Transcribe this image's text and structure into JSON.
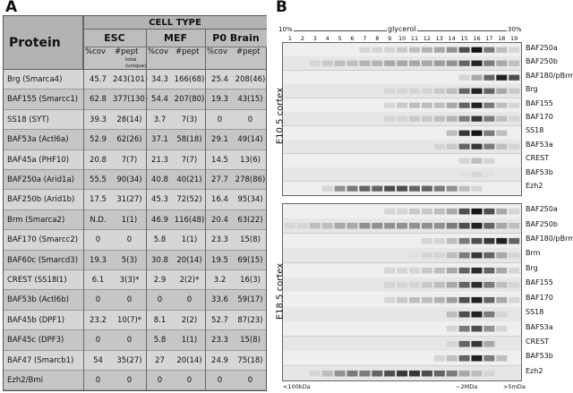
{
  "panel_a": {
    "letter": "A",
    "protein_header": "Protein",
    "cell_type_header": "CELL TYPE",
    "groups": [
      "ESC",
      "MEF",
      "P0  Brain"
    ],
    "subheaders": {
      "cov": "%cov",
      "pept": "#pept",
      "pept_note": "total (unique)"
    },
    "rows": [
      {
        "protein": "Brg (Smarca4)",
        "esc_cov": "45.7",
        "esc_pept": "243(101)",
        "mef_cov": "34.3",
        "mef_pept": "166(68)",
        "brain_cov": "25.4",
        "brain_pept": "208(46)"
      },
      {
        "protein": "BAF155 (Smarcc1)",
        "esc_cov": "62.8",
        "esc_pept": "377(130)",
        "mef_cov": "54.4",
        "mef_pept": "207(80)",
        "brain_cov": "19.3",
        "brain_pept": "43(15)"
      },
      {
        "protein": "SS18 (SYT)",
        "esc_cov": "39.3",
        "esc_pept": "28(14)",
        "mef_cov": "3.7",
        "mef_pept": "7(3)",
        "brain_cov": "0",
        "brain_pept": "0"
      },
      {
        "protein": "BAF53a (Actl6a)",
        "esc_cov": "52.9",
        "esc_pept": "62(26)",
        "mef_cov": "37.1",
        "mef_pept": "58(18)",
        "brain_cov": "29.1",
        "brain_pept": "49(14)"
      },
      {
        "protein": "BAF45a (PHF10)",
        "esc_cov": "20.8",
        "esc_pept": "7(7)",
        "mef_cov": "21.3",
        "mef_pept": "7(7)",
        "brain_cov": "14.5",
        "brain_pept": "13(6)"
      },
      {
        "protein": "BAF250a (Arid1a)",
        "esc_cov": "55.5",
        "esc_pept": "90(34)",
        "mef_cov": "40.8",
        "mef_pept": "40(21)",
        "brain_cov": "27.7",
        "brain_pept": "278(86)"
      },
      {
        "protein": "BAF250b (Arid1b)",
        "esc_cov": "17.5",
        "esc_pept": "31(27)",
        "mef_cov": "45.3",
        "mef_pept": "72(52)",
        "brain_cov": "16.4",
        "brain_pept": "95(34)"
      },
      {
        "protein": "Brm (Smarca2)",
        "esc_cov": "N.D.",
        "esc_pept": "1(1)",
        "mef_cov": "46.9",
        "mef_pept": "116(48)",
        "brain_cov": "20.4",
        "brain_pept": "63(22)"
      },
      {
        "protein": "BAF170 (Smarcc2)",
        "esc_cov": "0",
        "esc_pept": "0",
        "mef_cov": "5.8",
        "mef_pept": "1(1)",
        "brain_cov": "23.3",
        "brain_pept": "15(8)"
      },
      {
        "protein": "BAF60c (Smarcd3)",
        "esc_cov": "19.3",
        "esc_pept": "5(3)",
        "mef_cov": "30.8",
        "mef_pept": "20(14)",
        "brain_cov": "19.5",
        "brain_pept": "69(15)"
      },
      {
        "protein": "CREST (SS18l1)",
        "esc_cov": "6.1",
        "esc_pept": "3(3)*",
        "mef_cov": "2.9",
        "mef_pept": "2(2)*",
        "brain_cov": "3.2",
        "brain_pept": "16(3)"
      },
      {
        "protein": "BAF53b (Actl6b)",
        "esc_cov": "0",
        "esc_pept": "0",
        "mef_cov": "0",
        "mef_pept": "0",
        "brain_cov": "33.6",
        "brain_pept": "59(17)"
      },
      {
        "protein": "BAF45b (DPF1)",
        "esc_cov": "23.2",
        "esc_pept": "10(7)*",
        "mef_cov": "8.1",
        "mef_pept": "2(2)",
        "brain_cov": "52.7",
        "brain_pept": "87(23)"
      },
      {
        "protein": "BAF45c (DPF3)",
        "esc_cov": "0",
        "esc_pept": "0",
        "mef_cov": "5.8",
        "mef_pept": "1(1)",
        "brain_cov": "23.3",
        "brain_pept": "15(8)"
      },
      {
        "protein": "BAF47 (Smarcb1)",
        "esc_cov": "54",
        "esc_pept": "35(27)",
        "mef_cov": "27",
        "mef_pept": "20(14)",
        "brain_cov": "24.9",
        "brain_pept": "75(18)"
      },
      {
        "protein": "Ezh2/Bmi",
        "esc_cov": "0",
        "esc_pept": "0",
        "mef_cov": "0",
        "mef_pept": "0",
        "brain_cov": "0",
        "brain_pept": "0"
      }
    ]
  },
  "panel_b": {
    "letter": "B",
    "glycerol_label": "glycerol",
    "glycerol_low": "10%",
    "glycerol_high": "30%",
    "lanes": [
      "1",
      "2",
      "3",
      "4",
      "5",
      "6",
      "7",
      "8",
      "9",
      "10",
      "11",
      "12",
      "13",
      "14",
      "15",
      "16",
      "17",
      "18",
      "19"
    ],
    "groups": [
      {
        "label": "E10.5 cortex",
        "strips": [
          {
            "name": "BAF250a",
            "bands": [
              0,
              0,
              0,
              0,
              0,
              0,
              0.1,
              0.1,
              0.1,
              0.15,
              0.2,
              0.25,
              0.3,
              0.4,
              0.7,
              0.95,
              0.5,
              0.2,
              0.1
            ]
          },
          {
            "name": "BAF250b",
            "bands": [
              0,
              0,
              0.1,
              0.15,
              0.2,
              0.2,
              0.25,
              0.25,
              0.3,
              0.3,
              0.3,
              0.3,
              0.35,
              0.4,
              0.6,
              0.9,
              0.5,
              0.3,
              0.2
            ]
          },
          {
            "name": "BAF180/pBrm",
            "bands": [
              0,
              0,
              0,
              0,
              0,
              0,
              0,
              0,
              0,
              0,
              0,
              0,
              0,
              0,
              0.1,
              0.3,
              0.6,
              0.9,
              0.7
            ]
          },
          {
            "name": "Brg",
            "bands": [
              0,
              0,
              0,
              0,
              0,
              0,
              0,
              0,
              0.1,
              0.1,
              0.1,
              0.1,
              0.15,
              0.2,
              0.6,
              0.9,
              0.6,
              0.3,
              0.15
            ]
          },
          {
            "name": "BAF155",
            "bands": [
              0,
              0,
              0,
              0,
              0,
              0,
              0,
              0,
              0.1,
              0.15,
              0.2,
              0.2,
              0.2,
              0.3,
              0.6,
              0.9,
              0.5,
              0.2,
              0.1
            ]
          },
          {
            "name": "BAF170",
            "bands": [
              0,
              0,
              0,
              0,
              0,
              0,
              0,
              0,
              0.1,
              0.1,
              0.15,
              0.15,
              0.2,
              0.25,
              0.5,
              0.8,
              0.5,
              0.2,
              0.1
            ]
          },
          {
            "name": "SS18",
            "bands": [
              0,
              0,
              0,
              0,
              0,
              0,
              0,
              0,
              0,
              0,
              0,
              0,
              0,
              0.2,
              0.8,
              0.95,
              0.5,
              0.2,
              0
            ]
          },
          {
            "name": "BAF53a",
            "bands": [
              0,
              0,
              0,
              0,
              0,
              0,
              0,
              0,
              0,
              0,
              0,
              0,
              0.1,
              0.15,
              0.6,
              0.8,
              0.5,
              0.2,
              0.1
            ]
          },
          {
            "name": "CREST",
            "bands": [
              0,
              0,
              0,
              0,
              0,
              0,
              0,
              0,
              0,
              0,
              0,
              0,
              0,
              0,
              0.1,
              0.2,
              0.1,
              0,
              0
            ]
          },
          {
            "name": "BAF53b",
            "bands": [
              0,
              0,
              0,
              0,
              0,
              0,
              0,
              0,
              0,
              0,
              0,
              0,
              0,
              0,
              0.05,
              0.1,
              0.05,
              0,
              0
            ]
          },
          {
            "name": "Ezh2",
            "bands": [
              0,
              0,
              0,
              0.1,
              0.4,
              0.5,
              0.6,
              0.6,
              0.7,
              0.7,
              0.6,
              0.6,
              0.5,
              0.4,
              0.2,
              0.1,
              0,
              0,
              0
            ]
          }
        ]
      },
      {
        "label": "E18.5 cortex",
        "strips": [
          {
            "name": "BAF250a",
            "bands": [
              0,
              0,
              0,
              0,
              0,
              0,
              0,
              0,
              0.1,
              0.1,
              0.15,
              0.15,
              0.2,
              0.3,
              0.7,
              0.95,
              0.7,
              0.3,
              0.1
            ]
          },
          {
            "name": "BAF250b",
            "bands": [
              0.1,
              0.1,
              0.2,
              0.2,
              0.3,
              0.3,
              0.4,
              0.4,
              0.4,
              0.4,
              0.4,
              0.4,
              0.4,
              0.5,
              0.7,
              0.9,
              0.6,
              0.3,
              0.2
            ]
          },
          {
            "name": "BAF180/pBrm",
            "bands": [
              0,
              0,
              0,
              0,
              0,
              0,
              0,
              0,
              0,
              0,
              0,
              0.1,
              0.1,
              0.2,
              0.5,
              0.7,
              0.8,
              0.9,
              0.6
            ]
          },
          {
            "name": "Brm",
            "bands": [
              0,
              0,
              0,
              0,
              0,
              0,
              0,
              0,
              0,
              0,
              0.05,
              0.1,
              0.1,
              0.2,
              0.5,
              0.8,
              0.6,
              0.3,
              0.1
            ]
          },
          {
            "name": "Brg",
            "bands": [
              0,
              0,
              0,
              0,
              0,
              0,
              0,
              0,
              0.1,
              0.1,
              0.1,
              0.15,
              0.2,
              0.3,
              0.6,
              0.85,
              0.6,
              0.3,
              0.1
            ]
          },
          {
            "name": "BAF155",
            "bands": [
              0,
              0,
              0,
              0,
              0,
              0,
              0,
              0,
              0.1,
              0.1,
              0.1,
              0.15,
              0.2,
              0.3,
              0.6,
              0.85,
              0.5,
              0.2,
              0.1
            ]
          },
          {
            "name": "BAF170",
            "bands": [
              0,
              0,
              0,
              0,
              0,
              0,
              0,
              0,
              0.1,
              0.15,
              0.2,
              0.2,
              0.25,
              0.35,
              0.7,
              0.9,
              0.6,
              0.3,
              0.1
            ]
          },
          {
            "name": "SS18",
            "bands": [
              0,
              0,
              0,
              0,
              0,
              0,
              0,
              0,
              0,
              0,
              0,
              0,
              0,
              0.2,
              0.7,
              0.9,
              0.5,
              0.1,
              0
            ]
          },
          {
            "name": "BAF53a",
            "bands": [
              0,
              0,
              0,
              0,
              0,
              0,
              0,
              0,
              0,
              0,
              0,
              0,
              0,
              0.1,
              0.5,
              0.7,
              0.4,
              0.1,
              0
            ]
          },
          {
            "name": "CREST",
            "bands": [
              0,
              0,
              0,
              0,
              0,
              0,
              0,
              0,
              0,
              0,
              0,
              0,
              0,
              0.1,
              0.6,
              0.8,
              0.3,
              0,
              0
            ]
          },
          {
            "name": "BAF53b",
            "bands": [
              0,
              0,
              0,
              0,
              0,
              0,
              0,
              0,
              0,
              0,
              0,
              0,
              0.1,
              0.2,
              0.6,
              0.9,
              0.5,
              0.2,
              0
            ]
          },
          {
            "name": "Ezh2",
            "bands": [
              0,
              0,
              0.1,
              0.2,
              0.4,
              0.5,
              0.5,
              0.6,
              0.7,
              0.8,
              0.8,
              0.7,
              0.6,
              0.5,
              0.3,
              0.2,
              0.1,
              0,
              0
            ]
          }
        ]
      }
    ],
    "size_markers": [
      "<100kDa",
      "~2MDa",
      ">5mDa"
    ]
  }
}
